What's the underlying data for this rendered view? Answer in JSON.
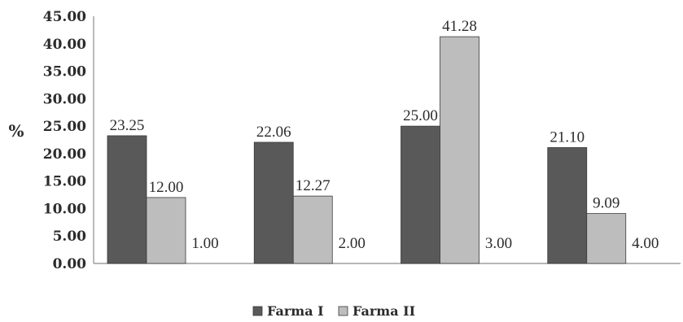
{
  "chart_data": {
    "type": "bar",
    "categories": [
      "",
      "",
      "",
      ""
    ],
    "ylabel": "%",
    "ylim": [
      0,
      45
    ],
    "ytick_step": 5,
    "ytick_labels": [
      "0.00",
      "5.00",
      "10.00",
      "15.00",
      "20.00",
      "25.00",
      "30.00",
      "35.00",
      "40.00",
      "45.00"
    ],
    "grid": false,
    "legend_position": "bottom",
    "series": [
      {
        "name": "Farma I",
        "values": [
          23.25,
          22.06,
          25.0,
          21.1
        ],
        "labels": [
          "23.25",
          "22.06",
          "25.00",
          "21.10"
        ],
        "color": "#595959"
      },
      {
        "name": "Farma II",
        "values": [
          12.0,
          12.27,
          41.28,
          9.09
        ],
        "labels": [
          "12.00",
          "12.27",
          "41.28",
          "9.09"
        ],
        "color": "#bdbdbd"
      }
    ],
    "annotations": [
      "1.00",
      "2.00",
      "3.00",
      "4.00"
    ]
  }
}
